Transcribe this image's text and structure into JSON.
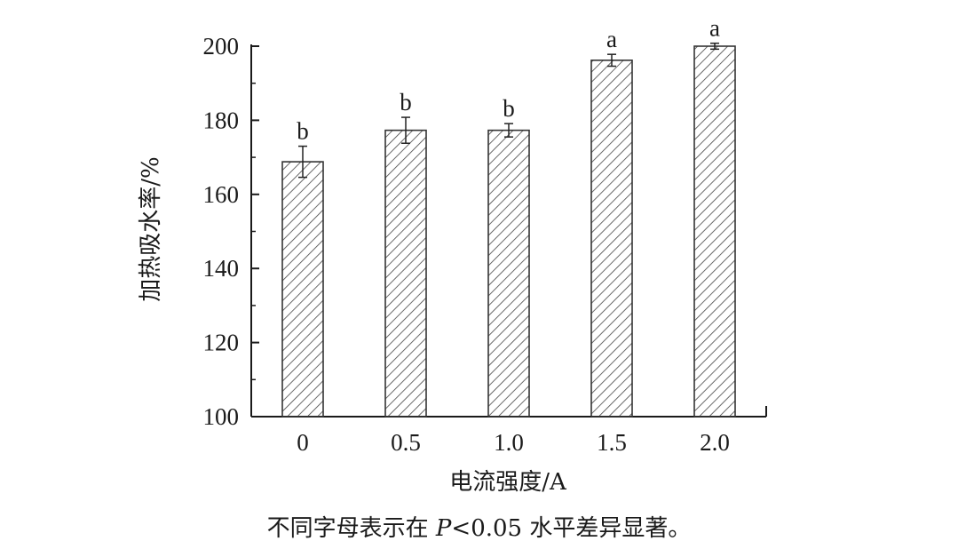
{
  "chart_data": {
    "type": "bar",
    "categories": [
      "0",
      "0.5",
      "1.0",
      "1.5",
      "2.0"
    ],
    "values": [
      168.8,
      177.3,
      177.3,
      196.2,
      200.0
    ],
    "errors": [
      4.2,
      3.5,
      1.8,
      1.6,
      0.8
    ],
    "significance": [
      "b",
      "b",
      "b",
      "a",
      "a"
    ],
    "xlabel": "电流强度/A",
    "ylabel": "加热吸水率/%",
    "ylim": [
      100,
      200
    ],
    "yticks": [
      "100",
      "120",
      "140",
      "160",
      "180",
      "200"
    ],
    "bar_fill": "hatched",
    "grid": false,
    "colors": {
      "bar_stroke": "#333333",
      "hatch": "#444444",
      "axis": "#1a1a1a"
    }
  },
  "caption": {
    "prefix": "不同字母表示在 ",
    "p_symbol": "P",
    "suffix": "<0.05 水平差异显著。"
  }
}
